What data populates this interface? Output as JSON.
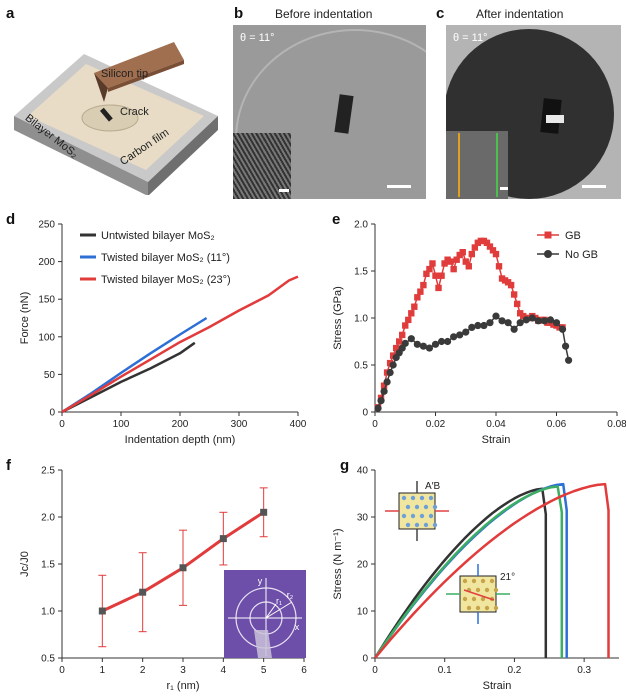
{
  "panels": {
    "a": {
      "label": "a",
      "texts": {
        "tip": "Silicon tip",
        "crack": "Crack",
        "mos2": "Bilayer MoS₂",
        "carbon": "Carbon film"
      }
    },
    "b": {
      "label": "b",
      "title": "Before indentation",
      "theta": "θ = 11°"
    },
    "c": {
      "label": "c",
      "title": "After indentation",
      "theta": "θ = 11°"
    },
    "d": {
      "label": "d"
    },
    "e": {
      "label": "e"
    },
    "f": {
      "label": "f"
    },
    "g": {
      "label": "g",
      "annot_top": "A′B",
      "annot_angle": "21°"
    }
  },
  "colors": {
    "black_series": "#333333",
    "blue_series": "#2e6fd6",
    "red_series": "#e23b3b",
    "green_series": "#3cae63",
    "gb_red": "#e03c3c",
    "nogb_dark": "#3a3a3a"
  },
  "chart_data": [
    {
      "id": "d",
      "type": "line",
      "xlabel": "Indentation depth (nm)",
      "ylabel": "Force (nN)",
      "xlim": [
        0,
        400
      ],
      "ylim": [
        0,
        250
      ],
      "xticks": [
        0,
        100,
        200,
        300,
        400
      ],
      "yticks": [
        0,
        50,
        100,
        150,
        200,
        250
      ],
      "legend_position": "top-left",
      "series": [
        {
          "name": "Untwisted bilayer MoS₂",
          "color": "#333333",
          "x": [
            0,
            50,
            100,
            150,
            200,
            225
          ],
          "y": [
            0,
            20,
            40,
            58,
            78,
            92
          ]
        },
        {
          "name": "Twisted bilayer MoS₂ (11°)",
          "color": "#2e6fd6",
          "x": [
            0,
            50,
            100,
            150,
            200,
            245
          ],
          "y": [
            0,
            25,
            52,
            78,
            103,
            125
          ]
        },
        {
          "name": "Twisted bilayer MoS₂ (23°)",
          "color": "#e23b3b",
          "x": [
            0,
            50,
            100,
            150,
            200,
            250,
            300,
            350,
            385,
            400
          ],
          "y": [
            0,
            23,
            47,
            70,
            93,
            113,
            135,
            155,
            175,
            180
          ]
        }
      ]
    },
    {
      "id": "e",
      "type": "line",
      "xlabel": "Strain",
      "ylabel": "Stress (GPa)",
      "xlim": [
        0,
        0.08
      ],
      "ylim": [
        0,
        2.0
      ],
      "xticks": [
        0,
        0.02,
        0.04,
        0.06,
        0.08
      ],
      "xticklabels": [
        "0",
        "0.02",
        "0.04",
        "0.06",
        "0.08"
      ],
      "yticks": [
        0,
        0.5,
        1.0,
        1.5,
        2.0
      ],
      "yticklabels": [
        "0",
        "0.5",
        "1.0",
        "1.5",
        "2.0"
      ],
      "legend_position": "top-right",
      "series": [
        {
          "name": "GB",
          "color": "#e03c3c",
          "marker": "square",
          "x": [
            0.001,
            0.002,
            0.003,
            0.004,
            0.005,
            0.006,
            0.007,
            0.008,
            0.009,
            0.01,
            0.011,
            0.012,
            0.013,
            0.014,
            0.015,
            0.016,
            0.017,
            0.018,
            0.019,
            0.02,
            0.021,
            0.022,
            0.023,
            0.024,
            0.025,
            0.026,
            0.027,
            0.028,
            0.029,
            0.03,
            0.031,
            0.032,
            0.033,
            0.034,
            0.035,
            0.036,
            0.037,
            0.038,
            0.039,
            0.04,
            0.041,
            0.042,
            0.043,
            0.044,
            0.045,
            0.046,
            0.047,
            0.048,
            0.049,
            0.05,
            0.051,
            0.052,
            0.053,
            0.054,
            0.055,
            0.056,
            0.057,
            0.058,
            0.059,
            0.06,
            0.061,
            0.062
          ],
          "y": [
            0.05,
            0.15,
            0.28,
            0.42,
            0.52,
            0.6,
            0.68,
            0.75,
            0.82,
            0.92,
            0.98,
            1.05,
            1.12,
            1.22,
            1.28,
            1.35,
            1.47,
            1.52,
            1.58,
            1.45,
            1.32,
            1.45,
            1.58,
            1.62,
            1.6,
            1.52,
            1.62,
            1.67,
            1.7,
            1.6,
            1.55,
            1.68,
            1.75,
            1.8,
            1.82,
            1.82,
            1.8,
            1.76,
            1.72,
            1.68,
            1.55,
            1.42,
            1.4,
            1.38,
            1.35,
            1.25,
            1.15,
            1.05,
            1.02,
            1.0,
            1.0,
            1.02,
            1.0,
            0.97,
            0.98,
            0.98,
            0.95,
            0.95,
            0.93,
            0.92,
            0.9,
            0.9
          ]
        },
        {
          "name": "No GB",
          "color": "#3a3a3a",
          "marker": "circle",
          "x": [
            0.001,
            0.002,
            0.003,
            0.004,
            0.005,
            0.006,
            0.007,
            0.008,
            0.009,
            0.01,
            0.012,
            0.014,
            0.016,
            0.018,
            0.02,
            0.022,
            0.024,
            0.026,
            0.028,
            0.03,
            0.032,
            0.034,
            0.036,
            0.038,
            0.04,
            0.042,
            0.044,
            0.046,
            0.048,
            0.05,
            0.052,
            0.054,
            0.056,
            0.058,
            0.06,
            0.062,
            0.063,
            0.064
          ],
          "y": [
            0.04,
            0.12,
            0.22,
            0.32,
            0.42,
            0.5,
            0.58,
            0.63,
            0.68,
            0.73,
            0.78,
            0.72,
            0.7,
            0.68,
            0.72,
            0.75,
            0.75,
            0.8,
            0.82,
            0.85,
            0.9,
            0.92,
            0.92,
            0.95,
            1.02,
            0.97,
            0.95,
            0.88,
            0.95,
            0.98,
            1.0,
            0.97,
            0.97,
            0.98,
            0.95,
            0.88,
            0.7,
            0.55
          ]
        }
      ]
    },
    {
      "id": "f",
      "type": "line",
      "xlabel": "r₁ (nm)",
      "ylabel": "Jc/J0",
      "xlim": [
        0,
        6
      ],
      "ylim": [
        0.5,
        2.5
      ],
      "xticks": [
        0,
        1,
        2,
        3,
        4,
        5,
        6
      ],
      "yticks": [
        0.5,
        1.0,
        1.5,
        2.0,
        2.5
      ],
      "yticklabels": [
        "0.5",
        "1.0",
        "1.5",
        "2.0",
        "2.5"
      ],
      "series": [
        {
          "color": "#e23b3b",
          "marker": "square",
          "x": [
            1,
            2,
            3,
            4,
            5
          ],
          "y": [
            1.0,
            1.2,
            1.46,
            1.77,
            2.05
          ],
          "err": [
            0.38,
            0.42,
            0.4,
            0.28,
            0.26
          ]
        }
      ],
      "inset_labels": [
        "y",
        "r₁",
        "r₂",
        "x"
      ]
    },
    {
      "id": "g",
      "type": "line",
      "xlabel": "Strain",
      "ylabel": "Stress (N m⁻¹)",
      "xlim": [
        0,
        0.35
      ],
      "ylim": [
        0,
        40
      ],
      "xticks": [
        0,
        0.1,
        0.2,
        0.3
      ],
      "xticklabels": [
        "0",
        "0.1",
        "0.2",
        "0.3"
      ],
      "yticks": [
        0,
        10,
        20,
        30,
        40
      ],
      "series": [
        {
          "color": "#333333",
          "peak_x": 0.24,
          "peak_y": 36,
          "end_x": 0.245
        },
        {
          "color": "#2e6fd6",
          "peak_x": 0.27,
          "peak_y": 37,
          "end_x": 0.275
        },
        {
          "color": "#3cae63",
          "peak_x": 0.262,
          "peak_y": 36.5,
          "end_x": 0.268
        },
        {
          "color": "#e23b3b",
          "peak_x": 0.33,
          "peak_y": 37,
          "end_x": 0.335
        }
      ]
    }
  ]
}
